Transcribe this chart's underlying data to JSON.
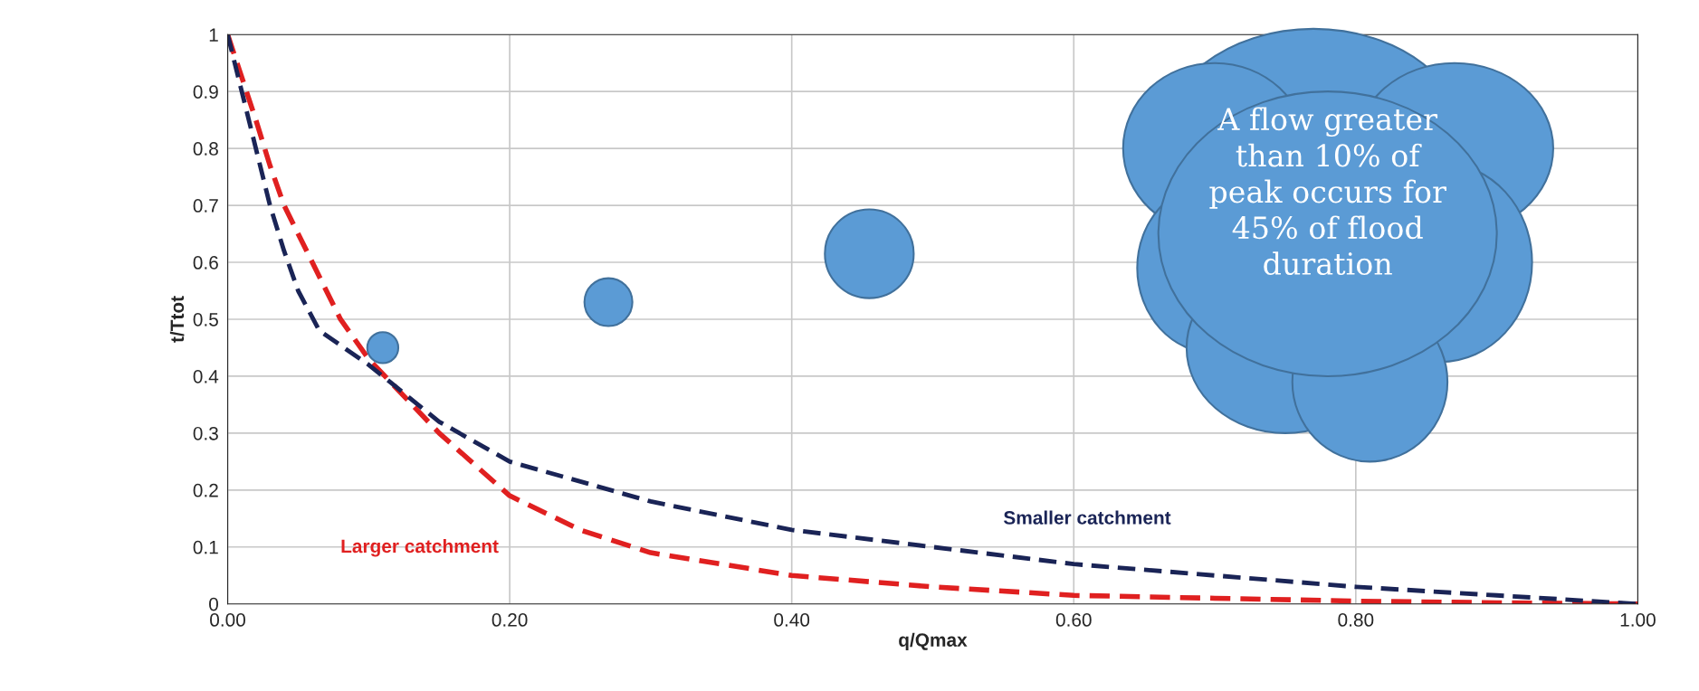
{
  "chart_data": {
    "type": "line",
    "xlabel": "q/Qmax",
    "ylabel": "t/Ttot",
    "annotations": [
      "A flow greater\nthan 10% of\npeak occurs for\n45% of flood\nduration"
    ],
    "series": [
      {
        "name": "Larger catchment",
        "color": "#e02020",
        "line_style": "dashed",
        "x": [
          0,
          0.02,
          0.03,
          0.04,
          0.06,
          0.08,
          0.1,
          0.15,
          0.2,
          0.25,
          0.3,
          0.4,
          0.5,
          0.6,
          0.7,
          0.8,
          0.9,
          1.0
        ],
        "values": [
          1,
          0.85,
          0.77,
          0.7,
          0.6,
          0.5,
          0.43,
          0.3,
          0.19,
          0.13,
          0.09,
          0.05,
          0.03,
          0.015,
          0.01,
          0.005,
          0.002,
          0
        ]
      },
      {
        "name": "Smaller catchment",
        "color": "#1a2456",
        "line_style": "dashed",
        "x": [
          0,
          0.02,
          0.03,
          0.04,
          0.05,
          0.065,
          0.1,
          0.15,
          0.2,
          0.3,
          0.4,
          0.5,
          0.6,
          0.7,
          0.8,
          0.9,
          1.0
        ],
        "values": [
          1,
          0.8,
          0.7,
          0.62,
          0.55,
          0.48,
          0.42,
          0.32,
          0.25,
          0.18,
          0.13,
          0.1,
          0.07,
          0.05,
          0.03,
          0.015,
          0
        ]
      }
    ],
    "xlim": [
      0,
      1
    ],
    "ylim": [
      0,
      1
    ],
    "xticks": [
      {
        "value": 0,
        "label": "0.00"
      },
      {
        "value": 0.2,
        "label": "0.20"
      },
      {
        "value": 0.4,
        "label": "0.40"
      },
      {
        "value": 0.6,
        "label": "0.60"
      },
      {
        "value": 0.8,
        "label": "0.80"
      },
      {
        "value": 1,
        "label": "1.00"
      }
    ],
    "yticks": [
      0,
      0.1,
      0.2,
      0.3,
      0.4,
      0.5,
      0.6,
      0.7,
      0.8,
      0.9,
      1
    ],
    "grid": true,
    "legend": false
  }
}
